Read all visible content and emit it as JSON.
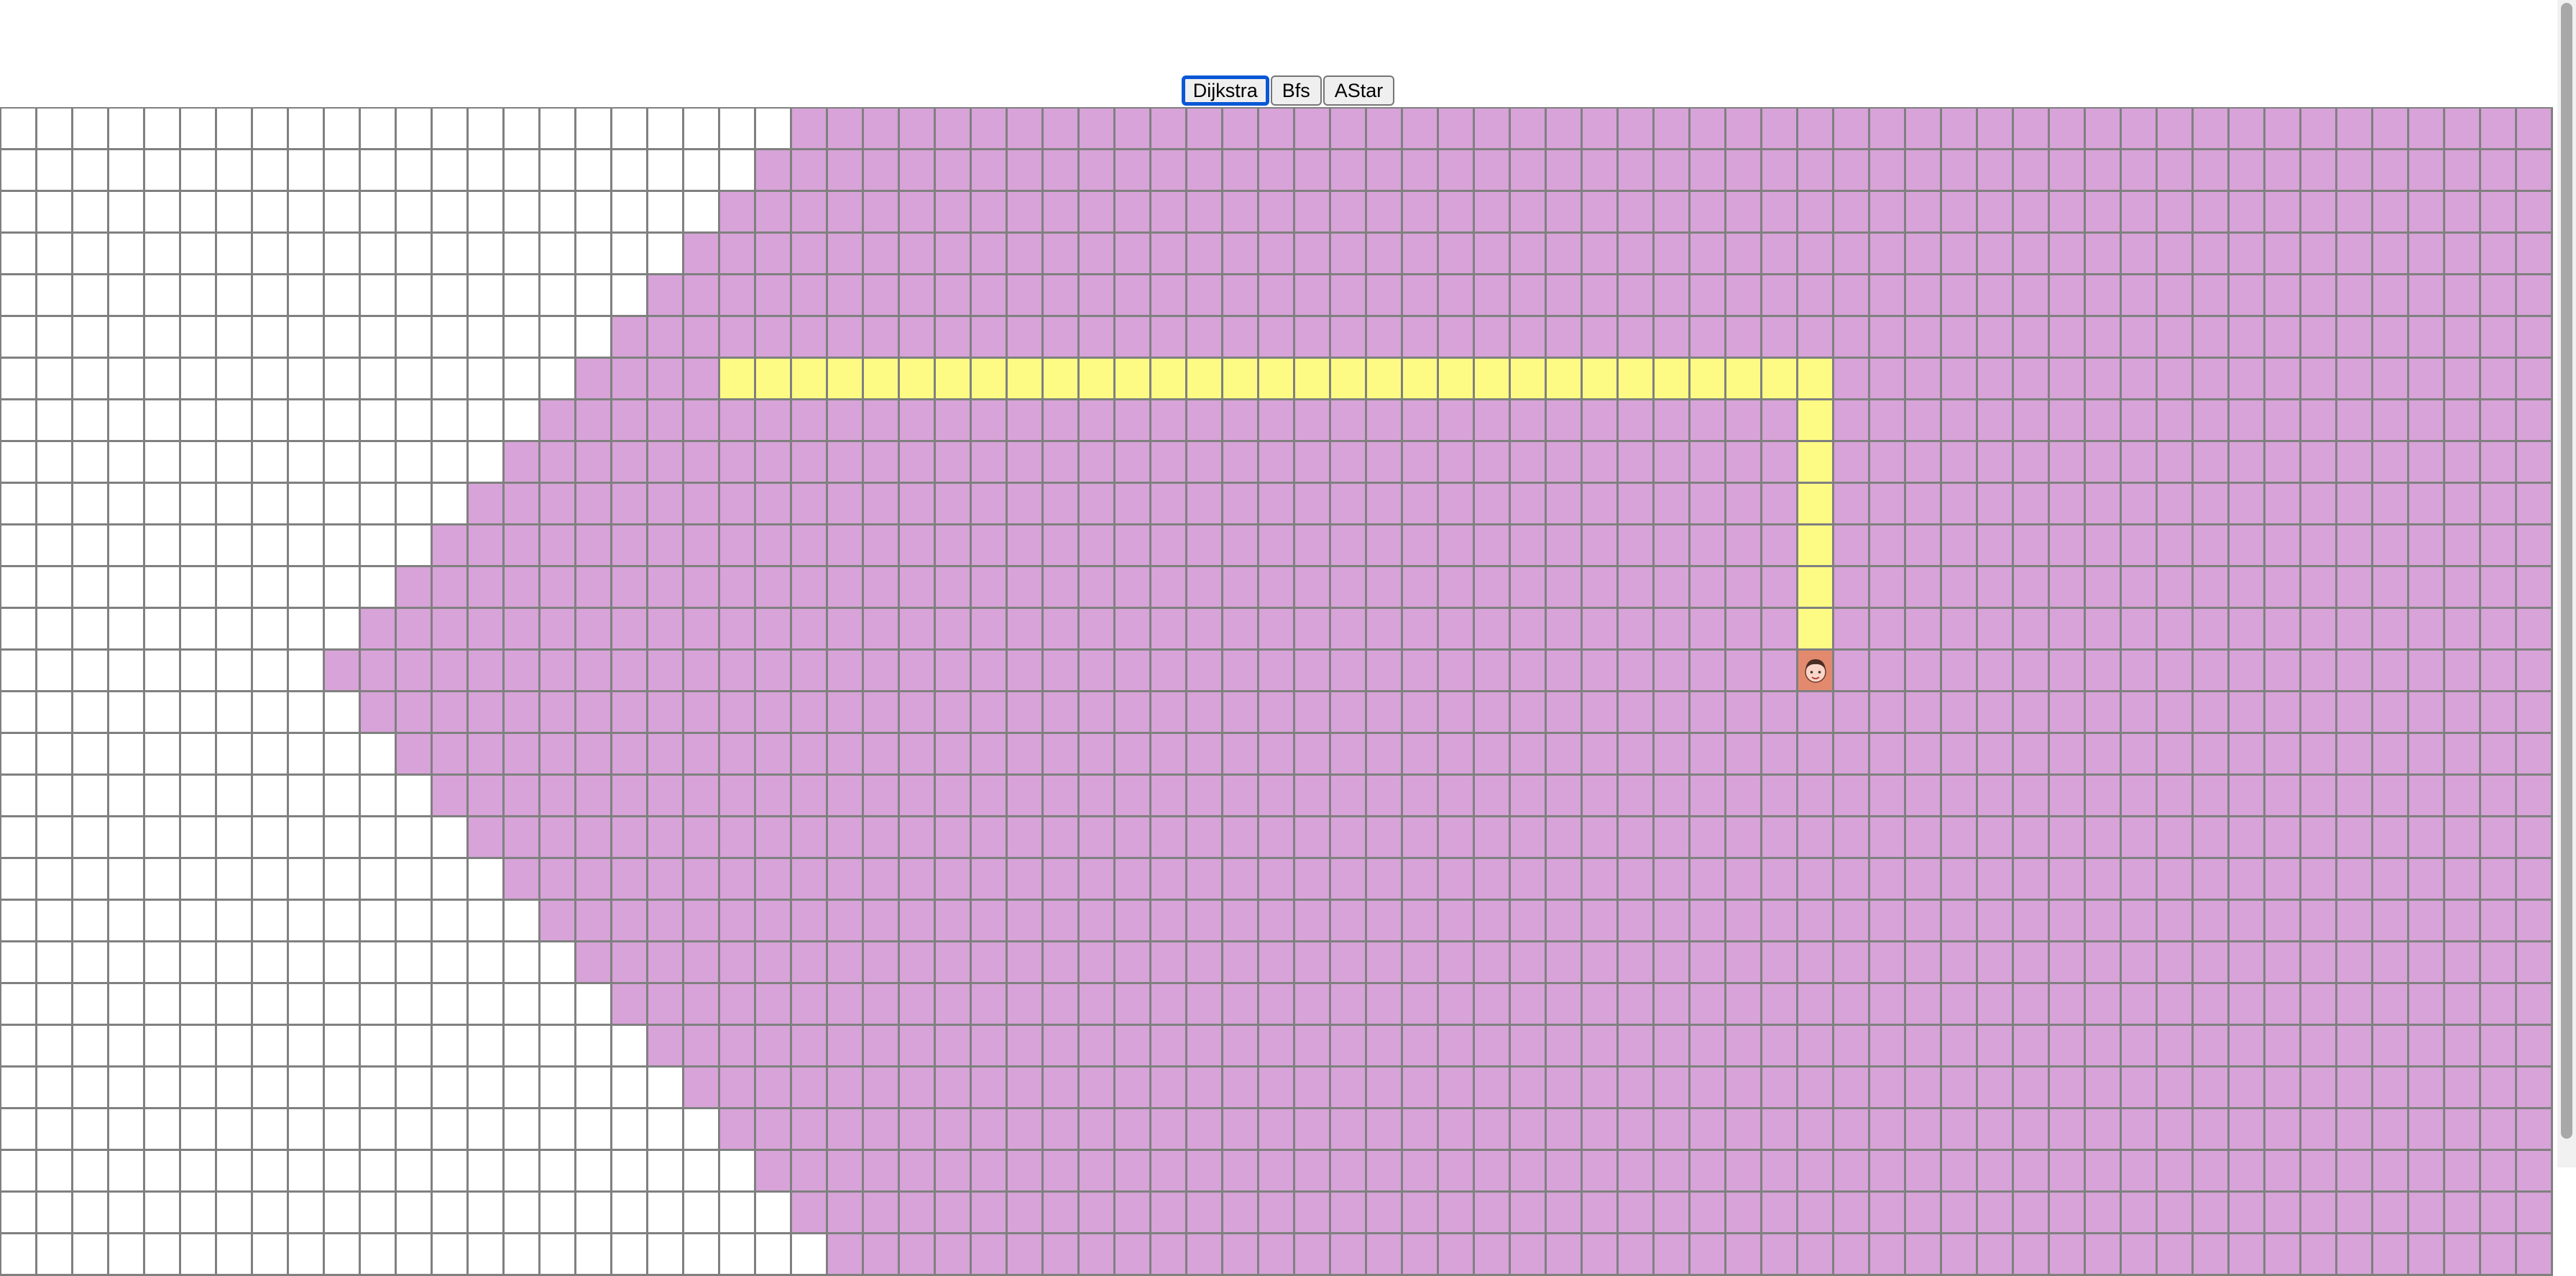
{
  "toolbar": {
    "buttons": [
      {
        "label": "Dijkstra",
        "active": true
      },
      {
        "label": "Bfs",
        "active": false
      },
      {
        "label": "AStar",
        "active": false
      }
    ]
  },
  "grid": {
    "columns": 71,
    "rows": 28,
    "start": {
      "row": 13,
      "col": 50
    },
    "visit_radius": 41,
    "path": {
      "row": 6,
      "col_from": 20,
      "col_to": 50,
      "vertical_to_row": 12
    }
  },
  "colors": {
    "visited": "#d7a3d8",
    "path": "#fefb84",
    "start": "#e38a6e",
    "unvisited": "#ffffff",
    "grid_line": "#808080",
    "active_button_border": "#0a57d6"
  },
  "icons": {
    "start_node": "person-face-icon"
  }
}
